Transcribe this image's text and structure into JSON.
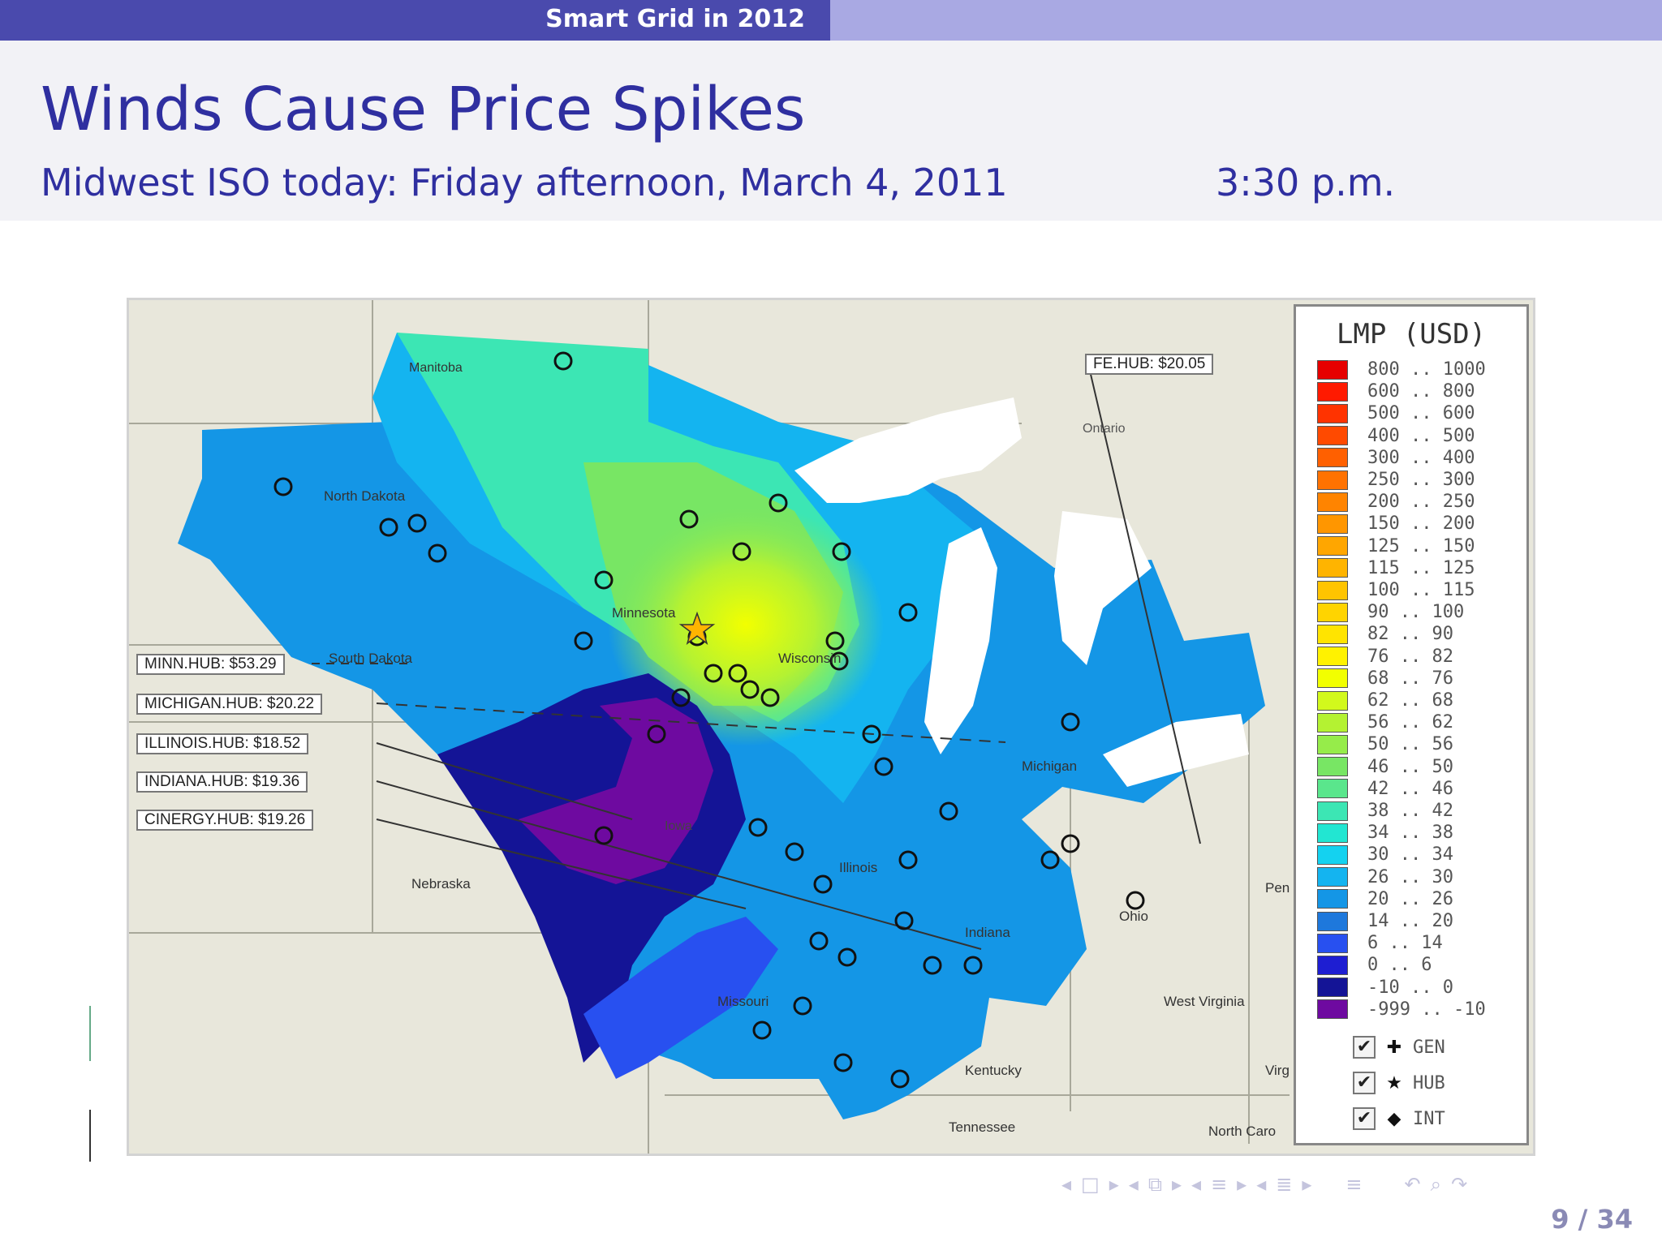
{
  "header": {
    "section_title": "Smart Grid in 2012"
  },
  "frame": {
    "title": "Winds Cause Price Spikes",
    "subtitle": "Midwest ISO today: Friday afternoon, March 4, 2011",
    "time": "3:30 p.m."
  },
  "map": {
    "hub_labels": [
      "MINN.HUB: $53.29",
      "MICHIGAN.HUB: $20.22",
      "ILLINOIS.HUB: $18.52",
      "INDIANA.HUB: $19.36",
      "CINERGY.HUB: $19.26"
    ],
    "fe_hub_label": "FE.HUB: $20.05",
    "places": {
      "manitoba": "Manitoba",
      "ontario": "Ontario",
      "north_dakota": "North Dakota",
      "minnesota": "Minnesota",
      "south_dakota": "South Dakota",
      "wisconsin": "Wisconsin",
      "michigan": "Michigan",
      "iowa": "Iowa",
      "illinois": "Illinois",
      "nebraska": "Nebraska",
      "indiana": "Indiana",
      "ohio": "Ohio",
      "missouri": "Missouri",
      "kentucky": "Kentucky",
      "west_virginia": "West Virginia",
      "tennessee": "Tennessee",
      "north_carolina": "North Caro",
      "pennsylvania": "Pen",
      "virginia": "Virg"
    }
  },
  "legend": {
    "title": "LMP (USD)",
    "entries": [
      {
        "label": "800 .. 1000",
        "color": "#e60000"
      },
      {
        "label": "600 .. 800",
        "color": "#ff1a00"
      },
      {
        "label": "500 .. 600",
        "color": "#ff3300"
      },
      {
        "label": "400 .. 500",
        "color": "#ff4a00"
      },
      {
        "label": "300 .. 400",
        "color": "#ff6000"
      },
      {
        "label": "250 .. 300",
        "color": "#ff7200"
      },
      {
        "label": "200 .. 250",
        "color": "#ff8400"
      },
      {
        "label": "150 .. 200",
        "color": "#ff9600"
      },
      {
        "label": "125 .. 150",
        "color": "#ffa600"
      },
      {
        "label": "115 .. 125",
        "color": "#ffb400"
      },
      {
        "label": "100 .. 115",
        "color": "#ffc400"
      },
      {
        "label": "90 .. 100",
        "color": "#ffd400"
      },
      {
        "label": "82 .. 90",
        "color": "#ffe400"
      },
      {
        "label": "76 .. 82",
        "color": "#fff200"
      },
      {
        "label": "68 .. 76",
        "color": "#f2ff00"
      },
      {
        "label": "62 .. 68",
        "color": "#d2f91c"
      },
      {
        "label": "56 .. 62",
        "color": "#b4f232"
      },
      {
        "label": "50 .. 56",
        "color": "#96ec4a"
      },
      {
        "label": "46 .. 50",
        "color": "#78e664"
      },
      {
        "label": "42 .. 46",
        "color": "#5ae68c"
      },
      {
        "label": "38 .. 42",
        "color": "#3ce6b4"
      },
      {
        "label": "34 .. 38",
        "color": "#22e6d2"
      },
      {
        "label": "30 .. 34",
        "color": "#14d2f0"
      },
      {
        "label": "26 .. 30",
        "color": "#14b4f0"
      },
      {
        "label": "20 .. 26",
        "color": "#1496e6"
      },
      {
        "label": "14 .. 20",
        "color": "#1e78dc"
      },
      {
        "label": "6 .. 14",
        "color": "#2850f0"
      },
      {
        "label": "0 .. 6",
        "color": "#1e1ed2"
      },
      {
        "label": "-10 .. 0",
        "color": "#141496"
      },
      {
        "label": "-999 .. -10",
        "color": "#6e0aa0"
      }
    ],
    "toggles": [
      {
        "glyph": "✚",
        "label": "GEN",
        "icon": "gen-plus-icon"
      },
      {
        "glyph": "★",
        "label": "HUB",
        "icon": "hub-star-icon"
      },
      {
        "glyph": "◆",
        "label": "INT",
        "icon": "int-diamond-icon"
      }
    ]
  },
  "footer": {
    "page": "9 / 34"
  }
}
